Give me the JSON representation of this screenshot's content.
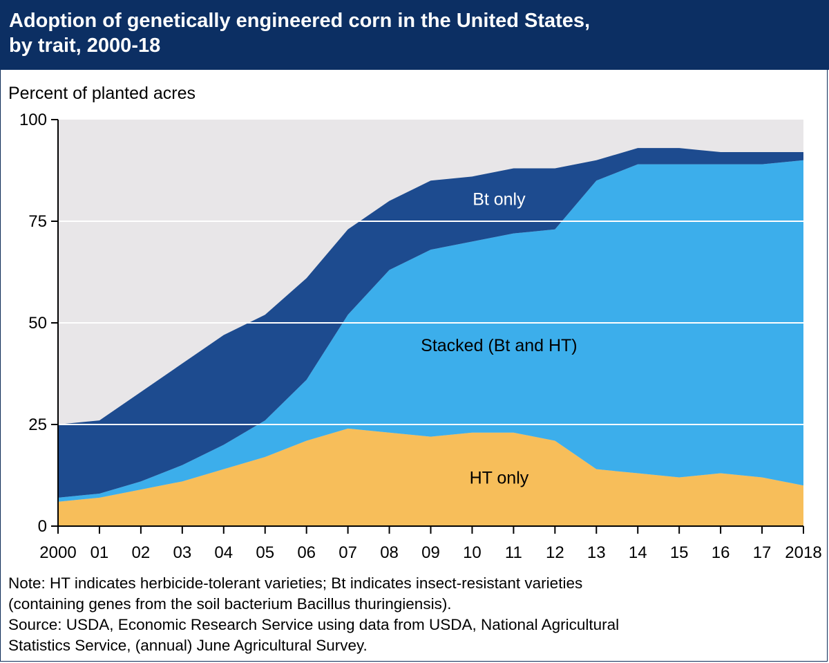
{
  "title_lines": [
    "Adoption of genetically engineered corn in the United States,",
    "by trait, 2000-18"
  ],
  "note_lines": [
    "Note: HT indicates herbicide-tolerant varieties; Bt indicates insect-resistant varieties",
    "(containing genes from the soil bacterium Bacillus thuringiensis).",
    "Source: USDA, Economic Research Service using data from USDA, National Agricultural",
    "Statistics Service, (annual) June Agricultural Survey."
  ],
  "colors": {
    "title_bg": "#0c2f63",
    "plot_bg": "#e8e6e8",
    "ht_only": "#f7be5a",
    "stacked": "#3caeeb",
    "bt_only": "#1d4b8f",
    "grid": "#ffffff"
  },
  "chart_data": {
    "type": "area",
    "stacked": true,
    "ylabel": "Percent of planted acres",
    "xlabel": "",
    "ylim": [
      0,
      100
    ],
    "yticks": [
      0,
      25,
      50,
      75,
      100
    ],
    "x_tick_labels": [
      "2000",
      "01",
      "02",
      "03",
      "04",
      "05",
      "06",
      "07",
      "08",
      "09",
      "10",
      "11",
      "12",
      "13",
      "14",
      "15",
      "16",
      "17",
      "2018"
    ],
    "x": [
      2000,
      2001,
      2002,
      2003,
      2004,
      2005,
      2006,
      2007,
      2008,
      2009,
      2010,
      2011,
      2012,
      2013,
      2014,
      2015,
      2016,
      2017,
      2018
    ],
    "grid": true,
    "series": [
      {
        "name": "HT only",
        "color": "#f7be5a",
        "values": [
          6,
          7,
          9,
          11,
          14,
          17,
          21,
          24,
          23,
          22,
          23,
          23,
          21,
          14,
          13,
          12,
          13,
          12,
          10
        ]
      },
      {
        "name": "Stacked (Bt and HT)",
        "color": "#3caeeb",
        "values": [
          1,
          1,
          2,
          4,
          6,
          9,
          15,
          28,
          40,
          46,
          47,
          49,
          52,
          71,
          76,
          77,
          76,
          77,
          80
        ]
      },
      {
        "name": "Bt only",
        "color": "#1d4b8f",
        "values": [
          18,
          18,
          22,
          25,
          27,
          26,
          25,
          21,
          17,
          17,
          16,
          16,
          15,
          5,
          4,
          4,
          3,
          3,
          2
        ]
      }
    ],
    "series_labels": [
      "Bt only",
      "Stacked (Bt and HT)",
      "HT only"
    ]
  }
}
